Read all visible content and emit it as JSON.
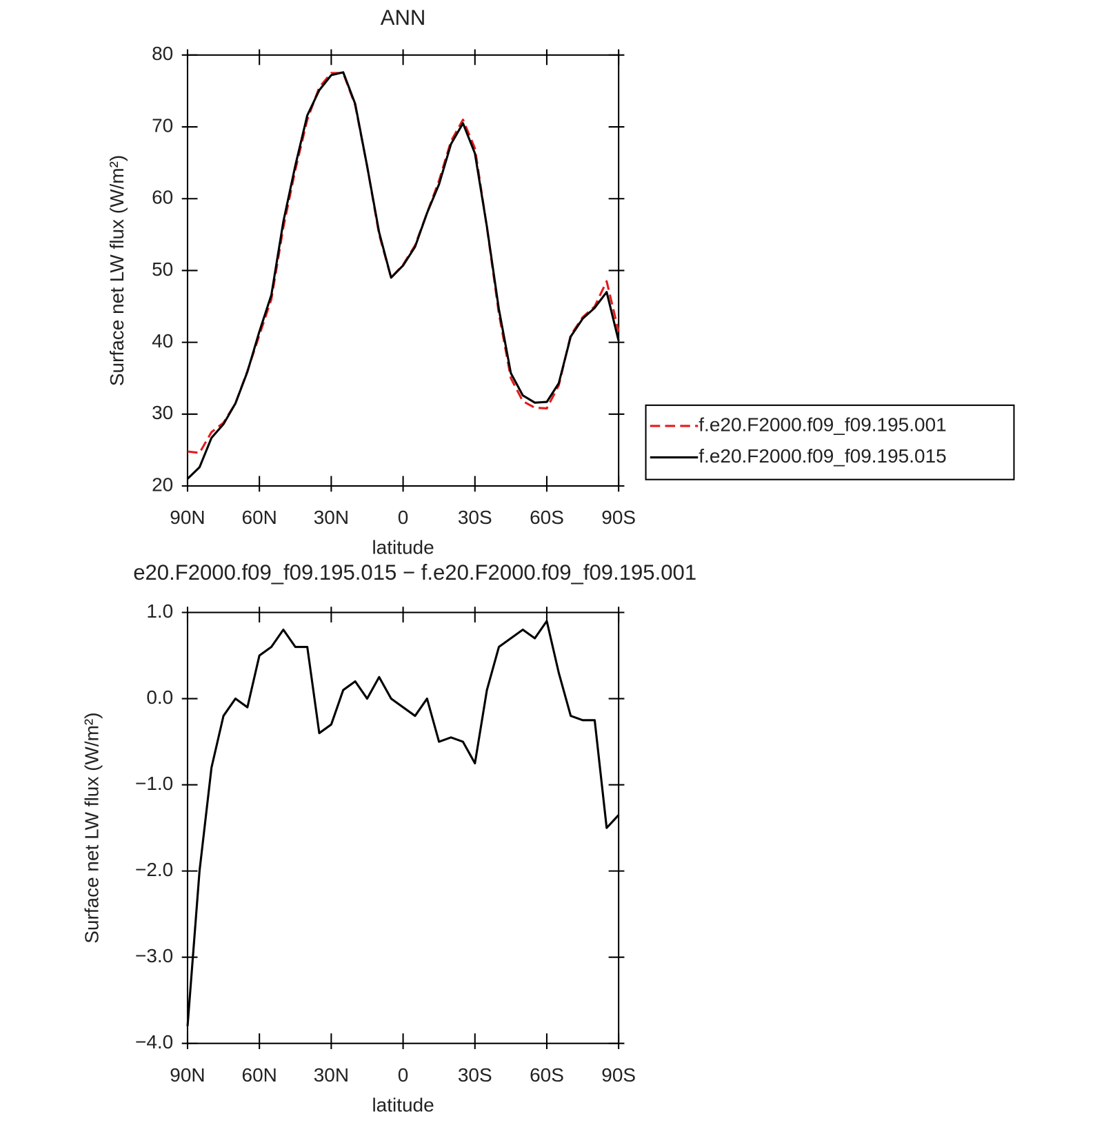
{
  "chart_data": [
    {
      "type": "line",
      "title": "ANN",
      "xlabel": "latitude",
      "ylabel": "Surface net LW flux (W/m²)",
      "x": [
        90,
        85,
        80,
        75,
        70,
        65,
        60,
        55,
        50,
        45,
        40,
        35,
        30,
        25,
        20,
        15,
        10,
        5,
        0,
        -5,
        -10,
        -15,
        -20,
        -25,
        -30,
        -35,
        -40,
        -45,
        -50,
        -55,
        -60,
        -65,
        -70,
        -75,
        -80,
        -85,
        -90
      ],
      "xlim": [
        90,
        -90
      ],
      "xticks": [
        {
          "value": 90,
          "label": "90N"
        },
        {
          "value": 60,
          "label": "60N"
        },
        {
          "value": 30,
          "label": "30N"
        },
        0,
        {
          "value": -30,
          "label": "30S"
        },
        {
          "value": -60,
          "label": "60S"
        },
        {
          "value": -90,
          "label": "90S"
        }
      ],
      "ylim": [
        20,
        80
      ],
      "yticks": [
        20,
        30,
        40,
        50,
        60,
        70,
        80
      ],
      "legend": "right",
      "series": [
        {
          "name": "f.e20.F2000.f09_f09.195.001",
          "color": "#e41a1c",
          "linestyle": "dashed",
          "values": [
            24.8,
            24.6,
            27.5,
            28.8,
            31.5,
            36,
            41,
            46,
            56,
            64,
            71,
            75.5,
            77.5,
            77.5,
            73,
            64.5,
            55,
            49,
            50.8,
            53.5,
            58,
            62.5,
            68,
            71,
            67,
            56,
            44,
            35,
            31.8,
            30.9,
            30.8,
            34,
            41,
            43.5,
            45,
            48.5,
            41.5
          ]
        },
        {
          "name": "f.e20.F2000.f09_f09.195.015",
          "color": "#000000",
          "linestyle": "solid",
          "values": [
            21.0,
            22.6,
            26.7,
            28.6,
            31.5,
            35.9,
            41.5,
            46.6,
            56.8,
            64.6,
            71.6,
            75.1,
            77.2,
            77.6,
            73.2,
            64.5,
            55.3,
            49,
            50.7,
            53.3,
            58,
            62,
            67.6,
            70.5,
            66.3,
            56.1,
            44.6,
            35.7,
            32.6,
            31.6,
            31.7,
            34.3,
            40.8,
            43.3,
            44.8,
            47,
            40.2
          ]
        }
      ]
    },
    {
      "type": "line",
      "title": "e20.F2000.f09_f09.195.015 − f.e20.F2000.f09_f09.195.001",
      "xlabel": "latitude",
      "ylabel": "Surface net LW flux (W/m²)",
      "x": [
        90,
        85,
        80,
        75,
        70,
        65,
        60,
        55,
        50,
        45,
        40,
        35,
        30,
        25,
        20,
        15,
        10,
        5,
        0,
        -5,
        -10,
        -15,
        -20,
        -25,
        -30,
        -35,
        -40,
        -45,
        -50,
        -55,
        -60,
        -65,
        -70,
        -75,
        -80,
        -85,
        -90
      ],
      "xlim": [
        90,
        -90
      ],
      "xticks": [
        {
          "value": 90,
          "label": "90N"
        },
        {
          "value": 60,
          "label": "60N"
        },
        {
          "value": 30,
          "label": "30N"
        },
        0,
        {
          "value": -30,
          "label": "30S"
        },
        {
          "value": -60,
          "label": "60S"
        },
        {
          "value": -90,
          "label": "90S"
        }
      ],
      "ylim": [
        -4,
        1
      ],
      "yticks": [
        {
          "value": -4,
          "label": "−4.0"
        },
        {
          "value": -3,
          "label": "−3.0"
        },
        {
          "value": -2,
          "label": "−2.0"
        },
        {
          "value": -1,
          "label": "−1.0"
        },
        {
          "value": 0,
          "label": "0.0"
        },
        {
          "value": 1,
          "label": "1.0"
        }
      ],
      "series": [
        {
          "color": "#000000",
          "linestyle": "solid",
          "values": [
            -3.8,
            -2.0,
            -0.8,
            -0.2,
            0.0,
            -0.1,
            0.5,
            0.6,
            0.8,
            0.6,
            0.6,
            -0.4,
            -0.3,
            0.1,
            0.2,
            0.0,
            0.25,
            0.0,
            -0.1,
            -0.2,
            0.0,
            -0.5,
            -0.45,
            -0.5,
            -0.75,
            0.1,
            0.6,
            0.7,
            0.8,
            0.7,
            0.9,
            0.3,
            -0.2,
            -0.25,
            -0.25,
            -1.5,
            -1.35
          ]
        }
      ]
    }
  ]
}
